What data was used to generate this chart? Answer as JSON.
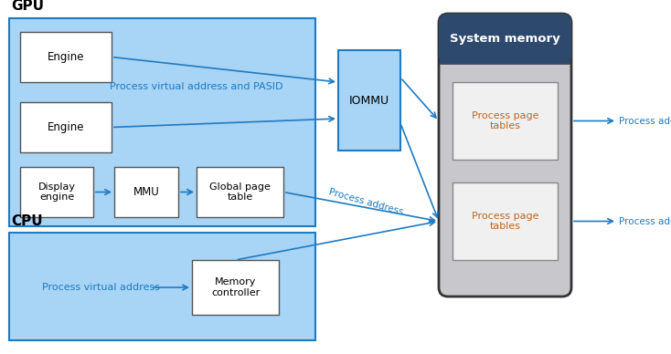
{
  "title_gpu": "GPU",
  "title_cpu": "CPU",
  "system_memory_title": "System memory",
  "iommu_label": "IOMMU",
  "engine1_label": "Engine",
  "engine2_label": "Engine",
  "display_engine_label": "Display\nengine",
  "mmu_label": "MMU",
  "global_page_label": "Global page\ntable",
  "process_virtual_label": "Process virtual address and PASID",
  "process_addr_label": "Process address",
  "process_addr_cpu_label": "Process virtual address",
  "memory_controller_label": "Memory\ncontroller",
  "process_page1_label": "Process page\ntables",
  "process_page2_label": "Process page\ntables",
  "bg_color": "#ffffff",
  "gpu_box_color": "#a8d4f5",
  "cpu_box_color": "#a8d4f5",
  "iommu_box_color": "#a8d4f5",
  "engine_box_color": "#ffffff",
  "system_memory_header_color": "#2d4a6e",
  "system_memory_body_color": "#c8c8cc",
  "process_page_box_color": "#f0f0f0",
  "arrow_color": "#1e7bc4",
  "text_color_dark": "#000000",
  "text_color_white": "#ffffff",
  "text_color_blue": "#1e7bc4",
  "text_color_orange": "#c0651e"
}
